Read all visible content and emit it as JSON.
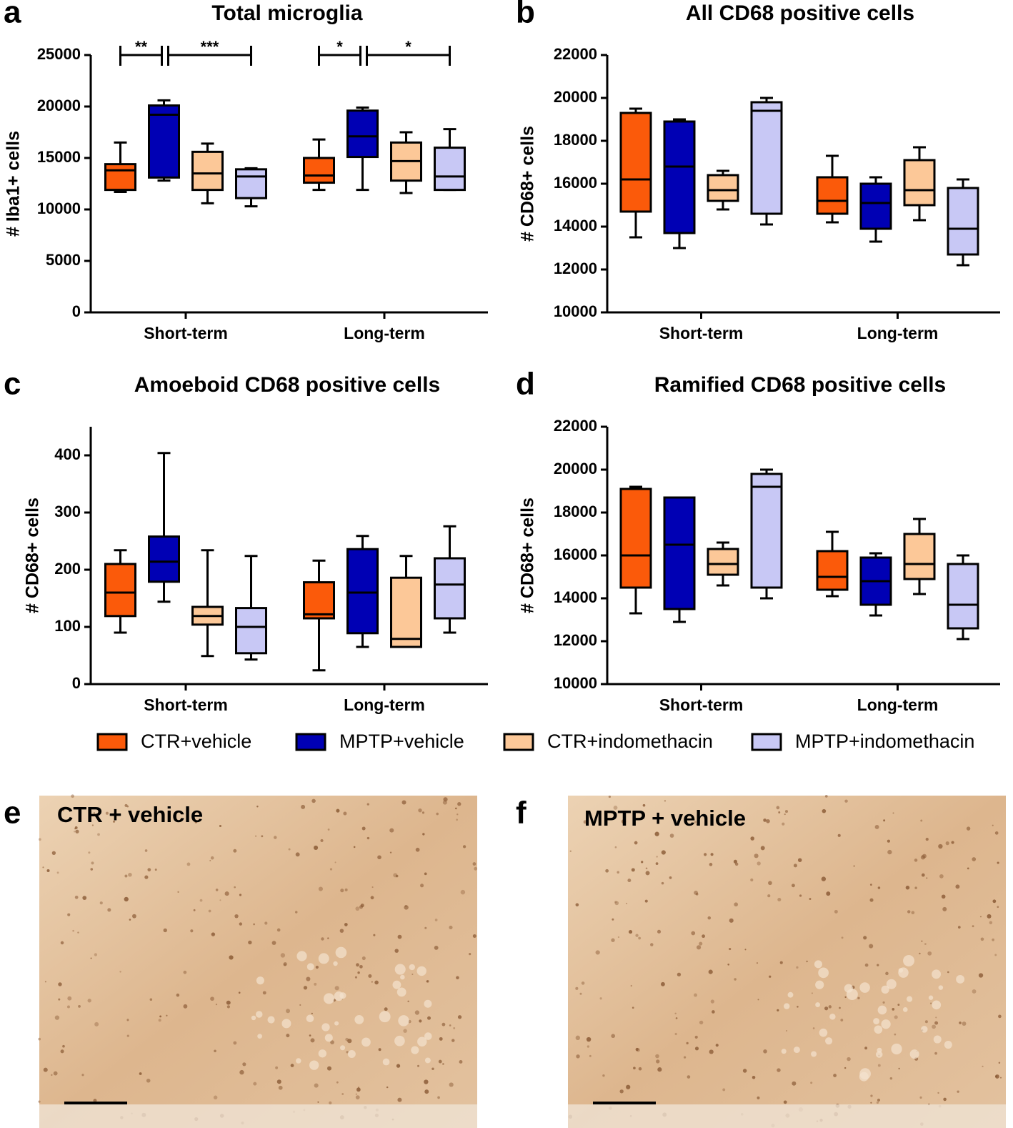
{
  "chart_data": [
    {
      "type": "box",
      "panel_label": "a",
      "title": "Total microglia",
      "ylabel": "# Iba1+ cells",
      "categories": [
        "Short-term",
        "Long-term"
      ],
      "ylim": [
        0,
        25000
      ],
      "yticks": [
        0,
        5000,
        10000,
        15000,
        20000,
        25000
      ],
      "series": [
        {
          "values": [
            {
              "min": 11700,
              "q1": 11900,
              "median": 13800,
              "q3": 14400,
              "max": 16500
            },
            {
              "min": 11900,
              "q1": 12600,
              "median": 13300,
              "q3": 15000,
              "max": 16800
            }
          ]
        },
        {
          "values": [
            {
              "min": 12800,
              "q1": 13100,
              "median": 19200,
              "q3": 20100,
              "max": 20600
            },
            {
              "min": 11900,
              "q1": 15100,
              "median": 17100,
              "q3": 19600,
              "max": 19900
            }
          ]
        },
        {
          "values": [
            {
              "min": 10600,
              "q1": 11900,
              "median": 13500,
              "q3": 15600,
              "max": 16400
            },
            {
              "min": 11600,
              "q1": 12800,
              "median": 14700,
              "q3": 16500,
              "max": 17500
            }
          ]
        },
        {
          "values": [
            {
              "min": 10300,
              "q1": 11100,
              "median": 13200,
              "q3": 13900,
              "max": 14000
            },
            {
              "min": 11900,
              "q1": 11900,
              "median": 13200,
              "q3": 16000,
              "max": 17800
            }
          ]
        }
      ],
      "annotations": [
        {
          "label": "**",
          "category": 0,
          "series": [
            0,
            1
          ]
        },
        {
          "label": "***",
          "category": 0,
          "series": [
            1,
            3
          ]
        },
        {
          "label": "*",
          "category": 1,
          "series": [
            0,
            1
          ]
        },
        {
          "label": "*",
          "category": 1,
          "series": [
            1,
            3
          ]
        }
      ]
    },
    {
      "type": "box",
      "panel_label": "b",
      "title": "All CD68 positive cells",
      "ylabel": "# CD68+ cells",
      "categories": [
        "Short-term",
        "Long-term"
      ],
      "ylim": [
        10000,
        22000
      ],
      "yticks": [
        10000,
        12000,
        14000,
        16000,
        18000,
        20000,
        22000
      ],
      "series": [
        {
          "values": [
            {
              "min": 13500,
              "q1": 14700,
              "median": 16200,
              "q3": 19300,
              "max": 19500
            },
            {
              "min": 14200,
              "q1": 14600,
              "median": 15200,
              "q3": 16300,
              "max": 17300
            }
          ]
        },
        {
          "values": [
            {
              "min": 13000,
              "q1": 13700,
              "median": 16800,
              "q3": 18900,
              "max": 19000
            },
            {
              "min": 13300,
              "q1": 13900,
              "median": 15100,
              "q3": 16000,
              "max": 16300
            }
          ]
        },
        {
          "values": [
            {
              "min": 14800,
              "q1": 15200,
              "median": 15700,
              "q3": 16400,
              "max": 16600
            },
            {
              "min": 14300,
              "q1": 15000,
              "median": 15700,
              "q3": 17100,
              "max": 17700
            }
          ]
        },
        {
          "values": [
            {
              "min": 14100,
              "q1": 14600,
              "median": 19400,
              "q3": 19800,
              "max": 20000
            },
            {
              "min": 12200,
              "q1": 12700,
              "median": 13900,
              "q3": 15800,
              "max": 16200
            }
          ]
        }
      ]
    },
    {
      "type": "box",
      "panel_label": "c",
      "title": "Amoeboid CD68 positive cells",
      "ylabel": "# CD68+ cells",
      "categories": [
        "Short-term",
        "Long-term"
      ],
      "ylim": [
        0,
        450
      ],
      "yticks": [
        0,
        100,
        200,
        300,
        400
      ],
      "series": [
        {
          "values": [
            {
              "min": 90,
              "q1": 119,
              "median": 160,
              "q3": 210,
              "max": 234
            },
            {
              "min": 24,
              "q1": 115,
              "median": 122,
              "q3": 178,
              "max": 216
            }
          ]
        },
        {
          "values": [
            {
              "min": 144,
              "q1": 179,
              "median": 214,
              "q3": 258,
              "max": 404
            },
            {
              "min": 65,
              "q1": 89,
              "median": 160,
              "q3": 236,
              "max": 259
            }
          ]
        },
        {
          "values": [
            {
              "min": 49,
              "q1": 104,
              "median": 119,
              "q3": 135,
              "max": 234
            },
            {
              "min": 65,
              "q1": 65,
              "median": 79,
              "q3": 186,
              "max": 224
            }
          ]
        },
        {
          "values": [
            {
              "min": 43,
              "q1": 54,
              "median": 100,
              "q3": 133,
              "max": 224
            },
            {
              "min": 90,
              "q1": 115,
              "median": 174,
              "q3": 220,
              "max": 276
            }
          ]
        }
      ]
    },
    {
      "type": "box",
      "panel_label": "d",
      "title": "Ramified CD68 positive cells",
      "ylabel": "# CD68+ cells",
      "categories": [
        "Short-term",
        "Long-term"
      ],
      "ylim": [
        10000,
        22000
      ],
      "yticks": [
        10000,
        12000,
        14000,
        16000,
        18000,
        20000,
        22000
      ],
      "series": [
        {
          "values": [
            {
              "min": 13300,
              "q1": 14500,
              "median": 16000,
              "q3": 19100,
              "max": 19200
            },
            {
              "min": 14100,
              "q1": 14400,
              "median": 15000,
              "q3": 16200,
              "max": 17100
            }
          ]
        },
        {
          "values": [
            {
              "min": 12900,
              "q1": 13500,
              "median": 16500,
              "q3": 18700,
              "max": 18700
            },
            {
              "min": 13200,
              "q1": 13700,
              "median": 14800,
              "q3": 15900,
              "max": 16100
            }
          ]
        },
        {
          "values": [
            {
              "min": 14600,
              "q1": 15100,
              "median": 15600,
              "q3": 16300,
              "max": 16600
            },
            {
              "min": 14200,
              "q1": 14900,
              "median": 15600,
              "q3": 17000,
              "max": 17700
            }
          ]
        },
        {
          "values": [
            {
              "min": 14000,
              "q1": 14500,
              "median": 19200,
              "q3": 19800,
              "max": 20000
            },
            {
              "min": 12100,
              "q1": 12600,
              "median": 13700,
              "q3": 15600,
              "max": 16000
            }
          ]
        }
      ]
    }
  ],
  "legend": {
    "entries": [
      {
        "name": "CTR+vehicle",
        "color": "#fb5a0a"
      },
      {
        "name": "MPTP+vehicle",
        "color": "#0000b4"
      },
      {
        "name": "CTR+indomethacin",
        "color": "#fcc898"
      },
      {
        "name": "MPTP+indomethacin",
        "color": "#c8c8f5"
      }
    ]
  },
  "images": [
    {
      "panel_label": "e",
      "caption": "CTR + vehicle"
    },
    {
      "panel_label": "f",
      "caption": "MPTP + vehicle"
    }
  ]
}
